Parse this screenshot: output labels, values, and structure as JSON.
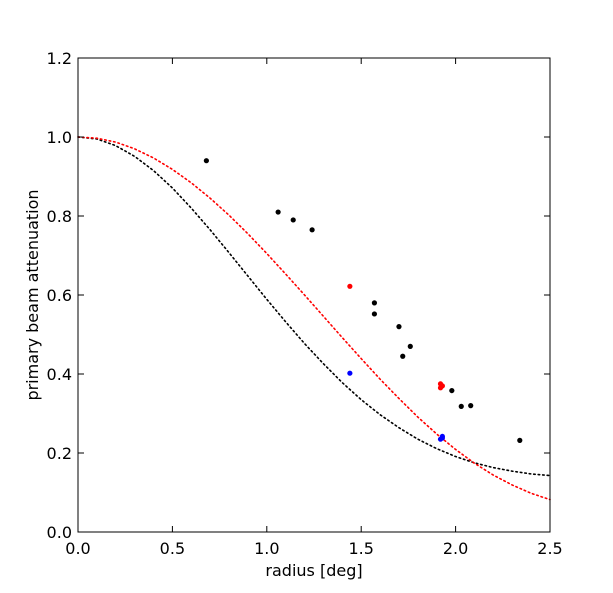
{
  "chart_data": {
    "type": "scatter",
    "xlabel": "radius [deg]",
    "ylabel": "primary beam attenuation",
    "xlim": [
      0.0,
      2.5
    ],
    "ylim": [
      0.0,
      1.2
    ],
    "xticks": [
      "0.0",
      "0.5",
      "1.0",
      "1.5",
      "2.0",
      "2.5"
    ],
    "yticks": [
      "0.0",
      "0.2",
      "0.4",
      "0.6",
      "0.8",
      "1.0",
      "1.2"
    ],
    "grid": false,
    "legend": "none",
    "series": [
      {
        "kind": "curve",
        "style": "dotted",
        "color": "#000000",
        "x": [
          0.0,
          0.1,
          0.2,
          0.3,
          0.4,
          0.5,
          0.6,
          0.7,
          0.8,
          0.9,
          1.0,
          1.1,
          1.2,
          1.3,
          1.4,
          1.5,
          1.6,
          1.7,
          1.8,
          1.9,
          2.0,
          2.1,
          2.2,
          2.3,
          2.4,
          2.5
        ],
        "y": [
          1.0,
          0.995,
          0.978,
          0.951,
          0.915,
          0.871,
          0.82,
          0.765,
          0.707,
          0.648,
          0.589,
          0.532,
          0.477,
          0.426,
          0.378,
          0.335,
          0.297,
          0.264,
          0.235,
          0.211,
          0.191,
          0.175,
          0.163,
          0.154,
          0.147,
          0.143
        ]
      },
      {
        "kind": "curve",
        "style": "dotted",
        "color": "#ff0000",
        "x": [
          0.0,
          0.1,
          0.2,
          0.3,
          0.4,
          0.5,
          0.6,
          0.7,
          0.8,
          0.9,
          1.0,
          1.1,
          1.2,
          1.3,
          1.4,
          1.5,
          1.6,
          1.7,
          1.8,
          1.9,
          2.0,
          2.1,
          2.2,
          2.3,
          2.4,
          2.5
        ],
        "y": [
          1.0,
          0.997,
          0.987,
          0.97,
          0.947,
          0.918,
          0.884,
          0.845,
          0.802,
          0.755,
          0.705,
          0.653,
          0.6,
          0.546,
          0.492,
          0.439,
          0.387,
          0.338,
          0.291,
          0.248,
          0.209,
          0.174,
          0.144,
          0.119,
          0.098,
          0.082
        ]
      },
      {
        "kind": "points",
        "color": "#000000",
        "x": [
          0.68,
          1.06,
          1.14,
          1.24,
          1.57,
          1.57,
          1.7,
          1.72,
          1.76,
          1.98,
          2.03,
          2.08,
          2.34
        ],
        "y": [
          0.94,
          0.81,
          0.79,
          0.765,
          0.58,
          0.552,
          0.52,
          0.445,
          0.47,
          0.358,
          0.318,
          0.32,
          0.232
        ]
      },
      {
        "kind": "points",
        "color": "#ff0000",
        "x": [
          1.44,
          1.92,
          1.92,
          1.93
        ],
        "y": [
          0.622,
          0.375,
          0.365,
          0.37
        ]
      },
      {
        "kind": "points",
        "color": "#0000ff",
        "x": [
          1.44,
          1.92,
          1.93,
          1.93
        ],
        "y": [
          0.402,
          0.235,
          0.242,
          0.238
        ]
      }
    ]
  }
}
